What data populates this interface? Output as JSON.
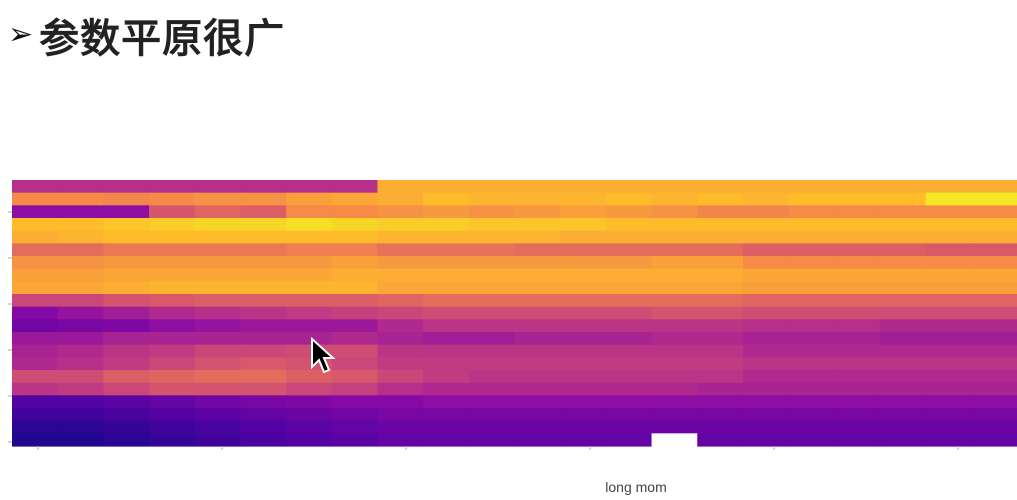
{
  "slide": {
    "bullet_icon": "arrow-bullet-icon",
    "bullet": "➢",
    "title": "参数平原很广"
  },
  "chart_data": {
    "type": "heatmap",
    "xlabel": "long mom",
    "ylabel": "",
    "x_ticks": [],
    "y_ticks": [],
    "colormap": "plasma",
    "value_range": [
      0,
      1
    ],
    "column_bins": 22,
    "rows": [
      [
        0.42,
        0.42,
        0.42,
        0.42,
        0.42,
        0.42,
        0.42,
        0.42,
        0.82,
        0.82,
        0.82,
        0.82,
        0.82,
        0.82,
        0.82,
        0.82,
        0.82,
        0.82,
        0.82,
        0.82,
        0.82,
        0.82
      ],
      [
        0.72,
        0.72,
        0.7,
        0.72,
        0.74,
        0.74,
        0.78,
        0.8,
        0.82,
        0.86,
        0.84,
        0.84,
        0.84,
        0.86,
        0.84,
        0.86,
        0.84,
        0.86,
        0.86,
        0.86,
        0.96,
        0.96
      ],
      [
        0.3,
        0.3,
        0.3,
        0.55,
        0.6,
        0.58,
        0.72,
        0.72,
        0.74,
        0.76,
        0.74,
        0.76,
        0.78,
        0.76,
        0.74,
        0.7,
        0.7,
        0.72,
        0.72,
        0.72,
        0.72,
        0.72
      ],
      [
        0.86,
        0.86,
        0.88,
        0.9,
        0.92,
        0.92,
        0.94,
        0.92,
        0.9,
        0.9,
        0.88,
        0.88,
        0.88,
        0.86,
        0.86,
        0.86,
        0.86,
        0.86,
        0.86,
        0.86,
        0.86,
        0.86
      ],
      [
        0.82,
        0.84,
        0.86,
        0.86,
        0.86,
        0.86,
        0.86,
        0.86,
        0.84,
        0.84,
        0.84,
        0.84,
        0.82,
        0.82,
        0.82,
        0.82,
        0.82,
        0.82,
        0.82,
        0.82,
        0.82,
        0.82
      ],
      [
        0.62,
        0.62,
        0.66,
        0.66,
        0.66,
        0.66,
        0.68,
        0.68,
        0.64,
        0.64,
        0.64,
        0.62,
        0.62,
        0.62,
        0.62,
        0.62,
        0.58,
        0.58,
        0.58,
        0.58,
        0.56,
        0.56
      ],
      [
        0.74,
        0.74,
        0.76,
        0.76,
        0.76,
        0.76,
        0.76,
        0.78,
        0.76,
        0.76,
        0.76,
        0.76,
        0.76,
        0.76,
        0.78,
        0.78,
        0.72,
        0.72,
        0.72,
        0.72,
        0.72,
        0.72
      ],
      [
        0.78,
        0.78,
        0.8,
        0.8,
        0.8,
        0.8,
        0.8,
        0.82,
        0.82,
        0.82,
        0.82,
        0.82,
        0.82,
        0.82,
        0.82,
        0.82,
        0.8,
        0.8,
        0.8,
        0.8,
        0.8,
        0.8
      ],
      [
        0.8,
        0.8,
        0.82,
        0.84,
        0.84,
        0.84,
        0.84,
        0.84,
        0.8,
        0.8,
        0.8,
        0.8,
        0.8,
        0.8,
        0.8,
        0.8,
        0.78,
        0.78,
        0.78,
        0.78,
        0.78,
        0.78
      ],
      [
        0.5,
        0.5,
        0.54,
        0.56,
        0.58,
        0.58,
        0.58,
        0.58,
        0.6,
        0.62,
        0.62,
        0.62,
        0.62,
        0.62,
        0.62,
        0.62,
        0.6,
        0.6,
        0.6,
        0.6,
        0.6,
        0.6
      ],
      [
        0.28,
        0.32,
        0.36,
        0.4,
        0.42,
        0.44,
        0.46,
        0.48,
        0.5,
        0.52,
        0.52,
        0.52,
        0.52,
        0.52,
        0.54,
        0.54,
        0.52,
        0.52,
        0.52,
        0.52,
        0.52,
        0.52
      ],
      [
        0.22,
        0.24,
        0.26,
        0.3,
        0.32,
        0.34,
        0.34,
        0.34,
        0.4,
        0.44,
        0.44,
        0.44,
        0.44,
        0.44,
        0.44,
        0.44,
        0.42,
        0.42,
        0.42,
        0.4,
        0.4,
        0.4
      ],
      [
        0.34,
        0.34,
        0.38,
        0.38,
        0.38,
        0.38,
        0.38,
        0.4,
        0.38,
        0.36,
        0.36,
        0.38,
        0.38,
        0.38,
        0.4,
        0.4,
        0.38,
        0.38,
        0.38,
        0.36,
        0.36,
        0.36
      ],
      [
        0.38,
        0.4,
        0.44,
        0.46,
        0.5,
        0.5,
        0.52,
        0.52,
        0.44,
        0.44,
        0.44,
        0.44,
        0.44,
        0.44,
        0.44,
        0.44,
        0.4,
        0.4,
        0.4,
        0.4,
        0.4,
        0.4
      ],
      [
        0.4,
        0.42,
        0.46,
        0.5,
        0.54,
        0.56,
        0.54,
        0.5,
        0.46,
        0.46,
        0.46,
        0.46,
        0.46,
        0.46,
        0.46,
        0.46,
        0.44,
        0.44,
        0.44,
        0.44,
        0.44,
        0.44
      ],
      [
        0.52,
        0.52,
        0.58,
        0.6,
        0.62,
        0.62,
        0.58,
        0.56,
        0.5,
        0.46,
        0.44,
        0.44,
        0.44,
        0.44,
        0.44,
        0.44,
        0.4,
        0.4,
        0.4,
        0.4,
        0.4,
        0.4
      ],
      [
        0.44,
        0.46,
        0.5,
        0.54,
        0.54,
        0.54,
        0.5,
        0.48,
        0.42,
        0.4,
        0.4,
        0.4,
        0.4,
        0.4,
        0.4,
        0.38,
        0.38,
        0.38,
        0.38,
        0.38,
        0.38,
        0.38
      ],
      [
        0.14,
        0.14,
        0.16,
        0.18,
        0.22,
        0.24,
        0.26,
        0.28,
        0.28,
        0.3,
        0.3,
        0.3,
        0.3,
        0.3,
        0.3,
        0.3,
        0.3,
        0.3,
        0.3,
        0.3,
        0.3,
        0.3
      ],
      [
        0.1,
        0.1,
        0.12,
        0.14,
        0.16,
        0.18,
        0.2,
        0.22,
        0.24,
        0.24,
        0.24,
        0.24,
        0.24,
        0.24,
        0.24,
        0.24,
        0.24,
        0.24,
        0.24,
        0.24,
        0.24,
        0.24
      ],
      [
        0.06,
        0.06,
        0.08,
        0.1,
        0.12,
        0.14,
        0.16,
        0.18,
        0.2,
        0.2,
        0.2,
        0.2,
        0.2,
        0.2,
        0.2,
        0.2,
        0.2,
        0.2,
        0.2,
        0.2,
        0.2,
        0.2
      ],
      [
        0.04,
        0.04,
        0.06,
        0.08,
        0.1,
        0.12,
        0.14,
        0.16,
        0.18,
        0.18,
        0.18,
        0.18,
        0.18,
        0.18,
        0.18,
        0.18,
        0.18,
        0.18,
        0.18,
        0.18,
        0.18,
        0.18
      ]
    ],
    "masked_cells": [
      [
        20,
        14
      ]
    ],
    "grid": false,
    "legend": "none"
  }
}
